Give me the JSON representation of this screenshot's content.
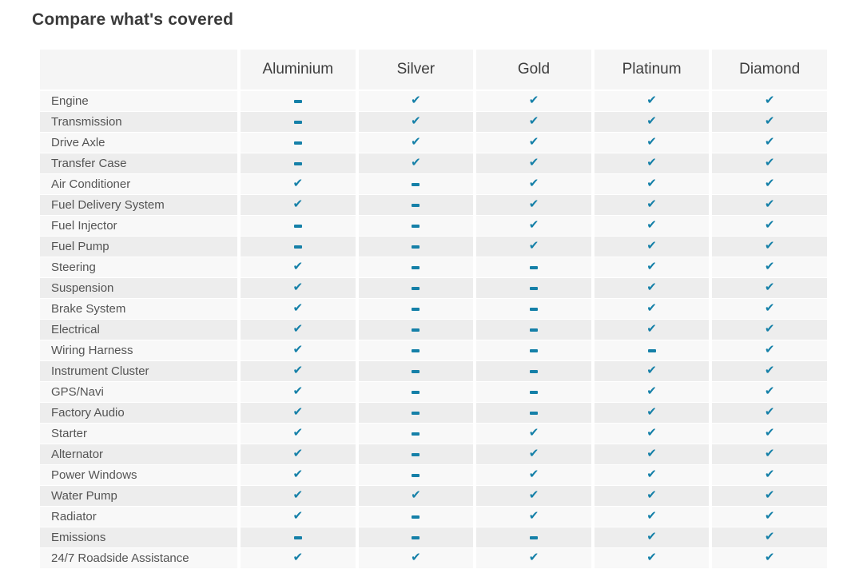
{
  "page": {
    "title": "Compare what's covered"
  },
  "colors": {
    "accent": "#1580a8",
    "header_bg": "#f5f5f5",
    "row_odd_bg": "#f8f8f8",
    "row_even_bg": "#ededed",
    "title_text": "#3a3a3a",
    "label_text": "#545454"
  },
  "icons": {
    "check": "✔",
    "dash": "-"
  },
  "table": {
    "plans": [
      "Aluminium",
      "Silver",
      "Gold",
      "Platinum",
      "Diamond"
    ],
    "rows": [
      {
        "label": "Engine",
        "coverage": [
          "dash",
          "check",
          "check",
          "check",
          "check"
        ]
      },
      {
        "label": "Transmission",
        "coverage": [
          "dash",
          "check",
          "check",
          "check",
          "check"
        ]
      },
      {
        "label": "Drive Axle",
        "coverage": [
          "dash",
          "check",
          "check",
          "check",
          "check"
        ]
      },
      {
        "label": "Transfer Case",
        "coverage": [
          "dash",
          "check",
          "check",
          "check",
          "check"
        ]
      },
      {
        "label": "Air Conditioner",
        "coverage": [
          "check",
          "dash",
          "check",
          "check",
          "check"
        ]
      },
      {
        "label": "Fuel Delivery System",
        "coverage": [
          "check",
          "dash",
          "check",
          "check",
          "check"
        ]
      },
      {
        "label": "Fuel Injector",
        "coverage": [
          "dash",
          "dash",
          "check",
          "check",
          "check"
        ]
      },
      {
        "label": "Fuel Pump",
        "coverage": [
          "dash",
          "dash",
          "check",
          "check",
          "check"
        ]
      },
      {
        "label": "Steering",
        "coverage": [
          "check",
          "dash",
          "dash",
          "check",
          "check"
        ]
      },
      {
        "label": "Suspension",
        "coverage": [
          "check",
          "dash",
          "dash",
          "check",
          "check"
        ]
      },
      {
        "label": "Brake System",
        "coverage": [
          "check",
          "dash",
          "dash",
          "check",
          "check"
        ]
      },
      {
        "label": "Electrical",
        "coverage": [
          "check",
          "dash",
          "dash",
          "check",
          "check"
        ]
      },
      {
        "label": "Wiring Harness",
        "coverage": [
          "check",
          "dash",
          "dash",
          "dash",
          "check"
        ]
      },
      {
        "label": "Instrument Cluster",
        "coverage": [
          "check",
          "dash",
          "dash",
          "check",
          "check"
        ]
      },
      {
        "label": "GPS/Navi",
        "coverage": [
          "check",
          "dash",
          "dash",
          "check",
          "check"
        ]
      },
      {
        "label": "Factory Audio",
        "coverage": [
          "check",
          "dash",
          "dash",
          "check",
          "check"
        ]
      },
      {
        "label": "Starter",
        "coverage": [
          "check",
          "dash",
          "check",
          "check",
          "check"
        ]
      },
      {
        "label": "Alternator",
        "coverage": [
          "check",
          "dash",
          "check",
          "check",
          "check"
        ]
      },
      {
        "label": "Power Windows",
        "coverage": [
          "check",
          "dash",
          "check",
          "check",
          "check"
        ]
      },
      {
        "label": "Water Pump",
        "coverage": [
          "check",
          "check",
          "check",
          "check",
          "check"
        ]
      },
      {
        "label": "Radiator",
        "coverage": [
          "check",
          "dash",
          "check",
          "check",
          "check"
        ]
      },
      {
        "label": "Emissions",
        "coverage": [
          "dash",
          "dash",
          "dash",
          "check",
          "check"
        ]
      },
      {
        "label": "24/7 Roadside Assistance",
        "coverage": [
          "check",
          "check",
          "check",
          "check",
          "check"
        ]
      }
    ]
  }
}
